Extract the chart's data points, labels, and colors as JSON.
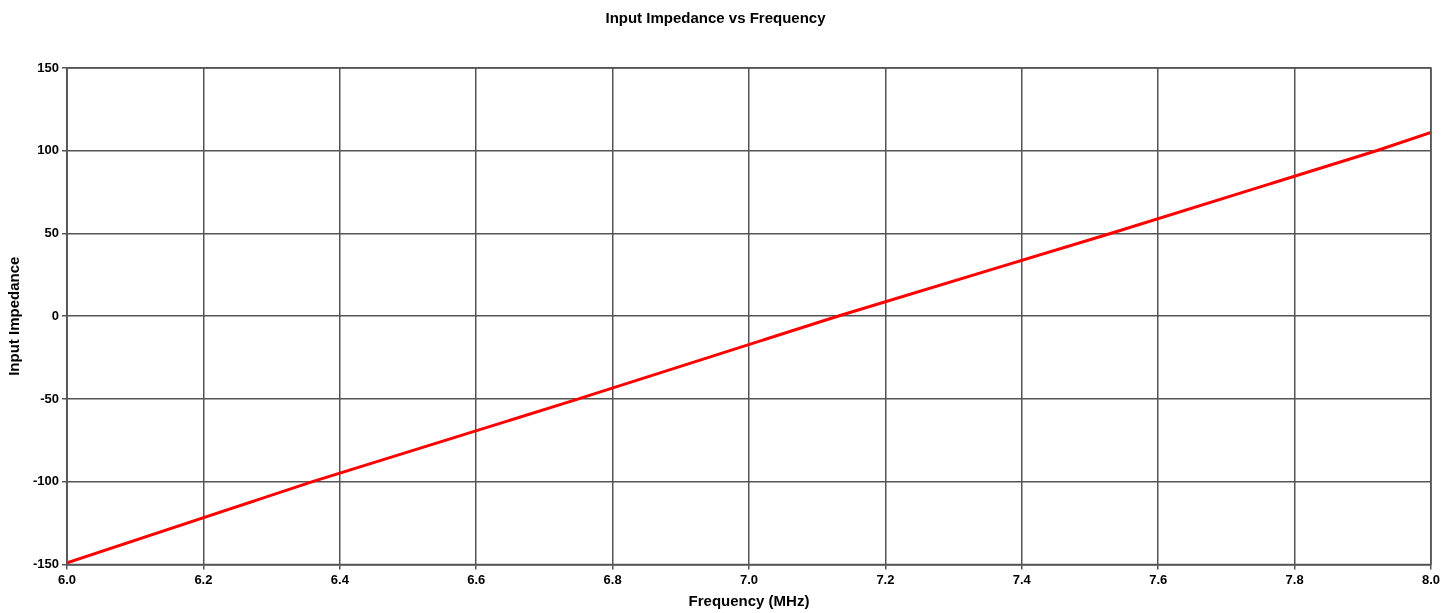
{
  "chart_data": {
    "type": "line",
    "title": "Input Impedance vs Frequency",
    "xlabel": "Frequency (MHz)",
    "ylabel": "Input Impedance",
    "x": [
      6.0,
      6.36,
      6.75,
      7.13,
      7.53,
      7.92,
      8.0
    ],
    "series": [
      {
        "color": "#ff0000",
        "values": [
          -149,
          -100,
          -50,
          0,
          50,
          100,
          111
        ]
      }
    ],
    "xlim": [
      6,
      8
    ],
    "xticks": [
      {
        "value": 6,
        "label": "6.0"
      },
      6.2,
      6.4,
      6.6,
      6.8,
      {
        "value": 7,
        "label": "7.0"
      },
      7.2,
      7.4,
      7.6,
      7.8,
      {
        "value": 8,
        "label": "8.0"
      }
    ],
    "ylim": [
      -150,
      150
    ],
    "yticks": [
      -150,
      -100,
      -50,
      0,
      50,
      100,
      150
    ],
    "grid": true,
    "legend": false,
    "marker": "none",
    "line_style": "solid"
  }
}
